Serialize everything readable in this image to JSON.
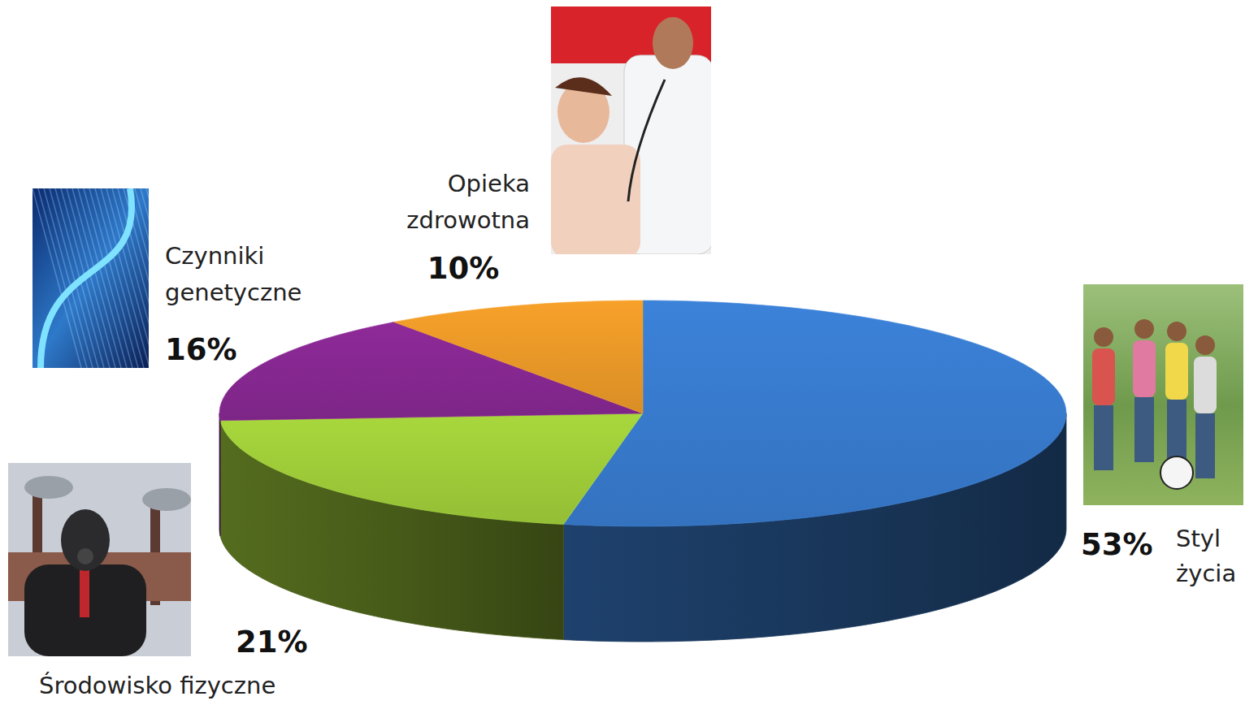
{
  "chart_data": {
    "type": "pie",
    "categories": [
      "Styl życia",
      "Środowisko fizyczne",
      "Czynniki genetyczne",
      "Opieka zdrowotna"
    ],
    "values": [
      53,
      21,
      16,
      10
    ],
    "value_labels": [
      "53%",
      "21%",
      "16%",
      "10%"
    ],
    "colors": [
      "#3b82d9",
      "#a8d83c",
      "#8e2a99",
      "#f7a12a"
    ],
    "data_labels": true
  }
}
